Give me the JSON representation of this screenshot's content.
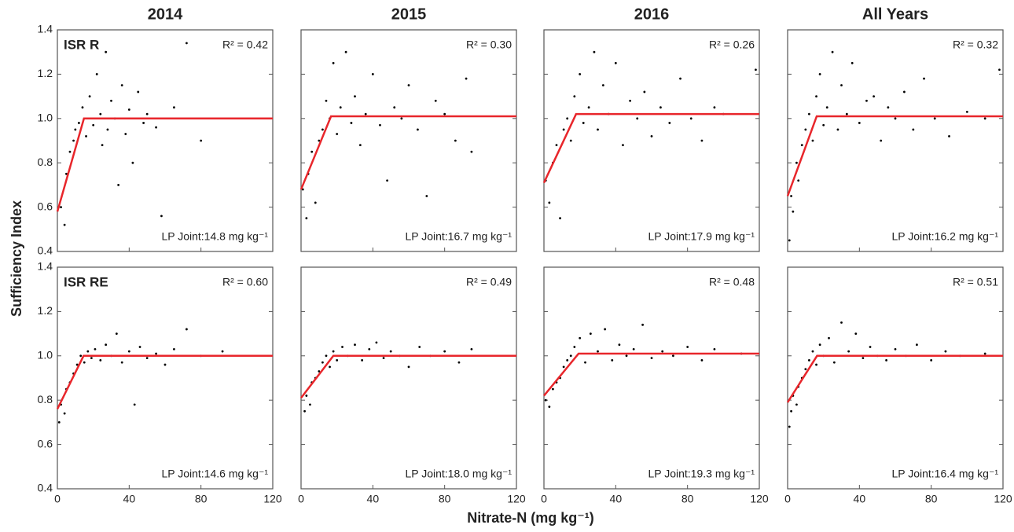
{
  "figure": {
    "ylabel": "Sufficiency Index",
    "xlabel": "Nitrate-N (mg kg⁻¹)"
  },
  "chart_data": [
    {
      "type": "scatter",
      "title": "2014",
      "panel_label": "ISR R",
      "annotations": [
        "R² = 0.42",
        "LP Joint:14.8 mg kg⁻¹"
      ],
      "x": [
        2,
        4,
        5,
        7,
        9,
        10,
        12,
        14,
        16,
        18,
        20,
        22,
        24,
        25,
        27,
        28,
        30,
        32,
        34,
        36,
        38,
        40,
        42,
        45,
        48,
        50,
        55,
        58,
        65,
        72,
        80
      ],
      "y": [
        0.6,
        0.52,
        0.75,
        0.85,
        0.9,
        0.95,
        0.98,
        1.05,
        0.92,
        1.1,
        0.97,
        1.2,
        1.02,
        0.88,
        1.3,
        0.95,
        1.08,
        1.0,
        0.7,
        1.15,
        0.93,
        1.04,
        0.8,
        1.12,
        0.98,
        1.02,
        0.96,
        0.56,
        1.05,
        1.34,
        0.9
      ],
      "color": "#000000",
      "fit": {
        "x": [
          0,
          14.8,
          120
        ],
        "y": [
          0.58,
          1.0,
          1.0
        ],
        "color": "#e8262b"
      },
      "xlim": [
        0,
        120
      ],
      "ylim": [
        0.4,
        1.4
      ],
      "xticks": [
        0,
        40,
        80,
        120
      ],
      "yticks": [
        0.4,
        0.6,
        0.8,
        {
          "value": 1,
          "label": "1.0"
        },
        1.2,
        1.4
      ],
      "show_xtick_labels": false,
      "show_ytick_labels": true
    },
    {
      "type": "scatter",
      "title": "2015",
      "annotations": [
        "R² = 0.30",
        "LP Joint:16.7 mg kg⁻¹"
      ],
      "x": [
        1,
        3,
        4,
        6,
        8,
        10,
        12,
        14,
        16,
        18,
        20,
        22,
        25,
        28,
        30,
        33,
        36,
        40,
        44,
        48,
        52,
        56,
        60,
        65,
        70,
        75,
        80,
        86,
        92,
        95
      ],
      "y": [
        0.68,
        0.55,
        0.75,
        0.85,
        0.62,
        0.9,
        0.95,
        1.08,
        1.0,
        1.25,
        0.93,
        1.05,
        1.3,
        0.98,
        1.1,
        0.88,
        1.02,
        1.2,
        0.97,
        0.72,
        1.05,
        1.0,
        1.15,
        0.95,
        0.65,
        1.08,
        1.02,
        0.9,
        1.18,
        0.85
      ],
      "color": "#000000",
      "fit": {
        "x": [
          0,
          16.7,
          120
        ],
        "y": [
          0.68,
          1.01,
          1.01
        ],
        "color": "#e8262b"
      },
      "xlim": [
        0,
        120
      ],
      "ylim": [
        0.4,
        1.4
      ],
      "xticks": [
        0,
        40,
        80,
        120
      ],
      "yticks": [
        0.4,
        0.6,
        0.8,
        {
          "value": 1,
          "label": "1.0"
        },
        1.2,
        1.4
      ],
      "show_xtick_labels": false,
      "show_ytick_labels": false
    },
    {
      "type": "scatter",
      "title": "2016",
      "annotations": [
        "R² = 0.26",
        "LP Joint:17.9 mg kg⁻¹"
      ],
      "x": [
        1,
        3,
        5,
        7,
        9,
        11,
        13,
        15,
        17,
        20,
        22,
        25,
        28,
        30,
        33,
        36,
        40,
        44,
        48,
        52,
        56,
        60,
        65,
        70,
        76,
        82,
        88,
        95,
        100,
        118
      ],
      "y": [
        0.72,
        0.62,
        0.8,
        0.88,
        0.55,
        0.95,
        1.0,
        0.9,
        1.1,
        1.2,
        0.98,
        1.05,
        1.3,
        0.95,
        1.15,
        1.02,
        1.25,
        0.88,
        1.08,
        1.0,
        1.12,
        0.92,
        1.05,
        0.98,
        1.18,
        1.0,
        0.9,
        1.05,
        1.02,
        1.22
      ],
      "color": "#000000",
      "fit": {
        "x": [
          0,
          17.9,
          120
        ],
        "y": [
          0.71,
          1.02,
          1.02
        ],
        "color": "#e8262b"
      },
      "xlim": [
        0,
        120
      ],
      "ylim": [
        0.4,
        1.4
      ],
      "xticks": [
        0,
        40,
        80,
        120
      ],
      "yticks": [
        0.4,
        0.6,
        0.8,
        {
          "value": 1,
          "label": "1.0"
        },
        1.2,
        1.4
      ],
      "show_xtick_labels": false,
      "show_ytick_labels": false
    },
    {
      "type": "scatter",
      "title": "All Years",
      "annotations": [
        "R² = 0.32",
        "LP Joint:16.2 mg kg⁻¹"
      ],
      "x": [
        1,
        2,
        3,
        5,
        6,
        8,
        10,
        12,
        14,
        16,
        18,
        20,
        22,
        25,
        28,
        30,
        33,
        36,
        40,
        44,
        48,
        52,
        56,
        60,
        65,
        70,
        76,
        82,
        90,
        100,
        110,
        118
      ],
      "y": [
        0.45,
        0.65,
        0.58,
        0.8,
        0.72,
        0.88,
        0.95,
        1.02,
        0.9,
        1.1,
        1.2,
        0.97,
        1.05,
        1.3,
        0.95,
        1.15,
        1.02,
        1.25,
        0.98,
        1.08,
        1.1,
        0.9,
        1.05,
        1.0,
        1.12,
        0.95,
        1.18,
        1.0,
        0.92,
        1.03,
        1.0,
        1.22
      ],
      "color": "#000000",
      "fit": {
        "x": [
          0,
          16.2,
          120
        ],
        "y": [
          0.65,
          1.01,
          1.01
        ],
        "color": "#e8262b"
      },
      "xlim": [
        0,
        120
      ],
      "ylim": [
        0.4,
        1.4
      ],
      "xticks": [
        0,
        40,
        80,
        120
      ],
      "yticks": [
        0.4,
        0.6,
        0.8,
        {
          "value": 1,
          "label": "1.0"
        },
        1.2,
        1.4
      ],
      "show_xtick_labels": false,
      "show_ytick_labels": false
    },
    {
      "type": "scatter",
      "panel_label": "ISR RE",
      "annotations": [
        "R² = 0.60",
        "LP Joint:14.6 mg kg⁻¹"
      ],
      "x": [
        1,
        2,
        4,
        5,
        7,
        9,
        11,
        13,
        15,
        17,
        19,
        21,
        24,
        27,
        30,
        33,
        36,
        40,
        43,
        46,
        50,
        55,
        60,
        65,
        72,
        80,
        92
      ],
      "y": [
        0.7,
        0.78,
        0.74,
        0.85,
        0.88,
        0.92,
        0.96,
        1.0,
        0.97,
        1.02,
        0.99,
        1.03,
        0.98,
        1.05,
        1.0,
        1.1,
        0.97,
        1.02,
        0.78,
        1.04,
        0.99,
        1.01,
        0.96,
        1.03,
        1.12,
        1.0,
        1.02
      ],
      "color": "#000000",
      "fit": {
        "x": [
          0,
          14.6,
          120
        ],
        "y": [
          0.76,
          1.0,
          1.0
        ],
        "color": "#e8262b"
      },
      "xlim": [
        0,
        120
      ],
      "ylim": [
        0.4,
        1.4
      ],
      "xticks": [
        0,
        40,
        80,
        120
      ],
      "yticks": [
        0.4,
        0.6,
        0.8,
        {
          "value": 1,
          "label": "1.0"
        },
        1.2,
        1.4
      ],
      "show_xtick_labels": true,
      "show_ytick_labels": true
    },
    {
      "type": "scatter",
      "annotations": [
        "R² = 0.49",
        "LP Joint:18.0 mg kg⁻¹"
      ],
      "x": [
        2,
        3,
        5,
        6,
        8,
        10,
        12,
        14,
        16,
        18,
        20,
        23,
        26,
        30,
        34,
        38,
        42,
        46,
        50,
        55,
        60,
        66,
        72,
        80,
        88,
        95
      ],
      "y": [
        0.75,
        0.82,
        0.78,
        0.88,
        0.9,
        0.93,
        0.97,
        1.0,
        0.95,
        1.02,
        0.98,
        1.04,
        1.0,
        1.05,
        0.98,
        1.03,
        1.06,
        0.99,
        1.02,
        1.0,
        0.95,
        1.04,
        1.0,
        1.02,
        0.97,
        1.03
      ],
      "color": "#000000",
      "fit": {
        "x": [
          0,
          18.0,
          120
        ],
        "y": [
          0.81,
          1.0,
          1.0
        ],
        "color": "#e8262b"
      },
      "xlim": [
        0,
        120
      ],
      "ylim": [
        0.4,
        1.4
      ],
      "xticks": [
        0,
        40,
        80,
        120
      ],
      "yticks": [
        0.4,
        0.6,
        0.8,
        {
          "value": 1,
          "label": "1.0"
        },
        1.2,
        1.4
      ],
      "show_xtick_labels": true,
      "show_ytick_labels": false
    },
    {
      "type": "scatter",
      "annotations": [
        "R² = 0.48",
        "LP Joint:19.3 mg kg⁻¹"
      ],
      "x": [
        1,
        3,
        5,
        7,
        9,
        11,
        13,
        15,
        17,
        20,
        23,
        26,
        30,
        34,
        38,
        42,
        46,
        50,
        55,
        60,
        66,
        72,
        80,
        88,
        95,
        110
      ],
      "y": [
        0.8,
        0.77,
        0.85,
        0.88,
        0.9,
        0.95,
        0.98,
        1.0,
        1.04,
        1.08,
        0.97,
        1.1,
        1.02,
        1.12,
        0.98,
        1.05,
        1.0,
        1.03,
        1.14,
        0.99,
        1.02,
        1.0,
        1.04,
        0.98,
        1.03,
        1.01
      ],
      "color": "#000000",
      "fit": {
        "x": [
          0,
          19.3,
          120
        ],
        "y": [
          0.82,
          1.01,
          1.01
        ],
        "color": "#e8262b"
      },
      "xlim": [
        0,
        120
      ],
      "ylim": [
        0.4,
        1.4
      ],
      "xticks": [
        0,
        40,
        80,
        120
      ],
      "yticks": [
        0.4,
        0.6,
        0.8,
        {
          "value": 1,
          "label": "1.0"
        },
        1.2,
        1.4
      ],
      "show_xtick_labels": true,
      "show_ytick_labels": false
    },
    {
      "type": "scatter",
      "annotations": [
        "R² = 0.51",
        "LP Joint:16.4 mg kg⁻¹"
      ],
      "x": [
        1,
        2,
        3,
        5,
        6,
        8,
        10,
        12,
        14,
        16,
        18,
        20,
        23,
        26,
        30,
        34,
        38,
        42,
        46,
        50,
        55,
        60,
        66,
        72,
        80,
        88,
        96,
        110
      ],
      "y": [
        0.68,
        0.75,
        0.82,
        0.78,
        0.86,
        0.9,
        0.94,
        0.98,
        1.02,
        0.96,
        1.05,
        1.0,
        1.08,
        0.97,
        1.15,
        1.02,
        1.1,
        0.99,
        1.04,
        1.0,
        0.98,
        1.03,
        1.0,
        1.05,
        0.98,
        1.02,
        1.0,
        1.01
      ],
      "color": "#000000",
      "fit": {
        "x": [
          0,
          16.4,
          120
        ],
        "y": [
          0.79,
          1.0,
          1.0
        ],
        "color": "#e8262b"
      },
      "xlim": [
        0,
        120
      ],
      "ylim": [
        0.4,
        1.4
      ],
      "xticks": [
        0,
        40,
        80,
        120
      ],
      "yticks": [
        0.4,
        0.6,
        0.8,
        {
          "value": 1,
          "label": "1.0"
        },
        1.2,
        1.4
      ],
      "show_xtick_labels": true,
      "show_ytick_labels": false
    }
  ]
}
